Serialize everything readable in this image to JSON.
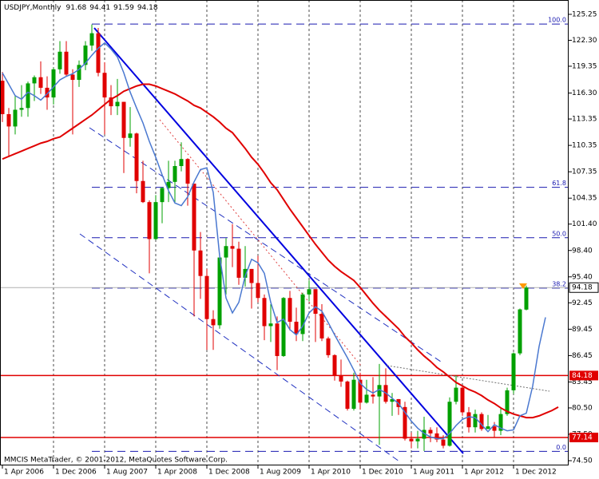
{
  "chart_data": {
    "type": "candlestick",
    "title": "USDJPY,Monthly",
    "footer": "MMCIS MetaTrader, © 2001-2012, MetaQuotes Software Corp.",
    "categories": [
      "1 Apr 2006",
      null,
      null,
      null,
      null,
      null,
      null,
      null,
      "1 Dec 2006",
      null,
      null,
      null,
      null,
      null,
      null,
      null,
      "1 Aug 2007",
      null,
      null,
      null,
      null,
      null,
      null,
      null,
      "1 Apr 2008",
      null,
      null,
      null,
      null,
      null,
      null,
      null,
      "1 Dec 2008",
      null,
      null,
      null,
      null,
      null,
      null,
      null,
      "1 Aug 2009",
      null,
      null,
      null,
      null,
      null,
      null,
      null,
      "1 Apr 2010",
      null,
      null,
      null,
      null,
      null,
      null,
      null,
      "1 Dec 2010",
      null,
      null,
      null,
      null,
      null,
      null,
      null,
      "1 Aug 2011",
      null,
      null,
      null,
      null,
      null,
      null,
      null,
      "1 Apr 2012",
      null,
      null,
      null,
      null,
      null,
      null,
      null,
      "1 Dec 2012",
      null,
      null,
      null,
      null,
      null,
      null,
      null
    ],
    "open": [
      117.7,
      113.9,
      112.5,
      114.4,
      114.6,
      117.4,
      118.1,
      116.9,
      115.8,
      119.0,
      121.0,
      118.4,
      117.8,
      119.5,
      121.7,
      123.1,
      118.6,
      115.8,
      114.8,
      115.3,
      111.2,
      111.7,
      106.3,
      103.9,
      99.7,
      103.9,
      105.5,
      106.2,
      108.0,
      108.8,
      106.0,
      98.4,
      95.5,
      90.6,
      89.9,
      97.6,
      98.9,
      98.6,
      95.3,
      96.3,
      94.7,
      93.0,
      89.8,
      90.1,
      86.4,
      93.0,
      90.3,
      88.9,
      93.4,
      94.0,
      91.2,
      88.4,
      86.5,
      84.2,
      83.5,
      80.4,
      83.7,
      81.1,
      82.0,
      81.8,
      83.1,
      81.2,
      81.5,
      80.6,
      77.0,
      76.7,
      77.0,
      78.0,
      77.6,
      76.9,
      76.2,
      81.2,
      82.8,
      80.0,
      78.3,
      79.8,
      78.1,
      78.4,
      77.9,
      79.8,
      82.5,
      86.7,
      91.68,
      null,
      null,
      null,
      null,
      null
    ],
    "high": [
      118.7,
      114.6,
      116.0,
      117.2,
      117.6,
      118.3,
      119.9,
      118.2,
      119.2,
      122.2,
      122.2,
      119.0,
      120.0,
      122.2,
      124.1,
      123.7,
      119.8,
      117.2,
      117.9,
      115.3,
      114.7,
      111.8,
      108.6,
      104.1,
      104.7,
      105.6,
      108.6,
      108.6,
      110.7,
      108.9,
      106.0,
      100.5,
      96.3,
      91.6,
      98.1,
      99.8,
      101.4,
      99.4,
      98.9,
      96.3,
      97.8,
      93.4,
      92.3,
      90.9,
      93.1,
      93.8,
      91.9,
      93.6,
      95.0,
      94.0,
      92.3,
      88.6,
      86.6,
      86.0,
      83.6,
      84.5,
      84.5,
      83.7,
      84.0,
      85.5,
      85.0,
      82.2,
      81.5,
      81.2,
      77.7,
      77.9,
      79.5,
      78.3,
      78.3,
      77.4,
      81.7,
      84.2,
      82.9,
      80.6,
      80.3,
      80.0,
      79.7,
      78.9,
      80.4,
      82.8,
      86.8,
      91.8,
      94.41,
      null,
      null,
      null,
      null,
      null
    ],
    "low": [
      113.0,
      109.0,
      111.6,
      113.6,
      113.6,
      115.4,
      116.2,
      114.4,
      115.0,
      118.5,
      118.2,
      111.6,
      117.0,
      118.9,
      121.1,
      118.2,
      111.6,
      113.8,
      113.8,
      107.2,
      110.2,
      104.9,
      103.8,
      95.8,
      99.6,
      101.5,
      103.9,
      103.8,
      107.4,
      103.5,
      90.9,
      92.9,
      87.1,
      87.1,
      89.5,
      93.4,
      96.5,
      94.5,
      94.3,
      91.8,
      92.5,
      88.2,
      88.0,
      84.8,
      86.3,
      89.3,
      88.1,
      88.1,
      92.6,
      88.0,
      88.1,
      86.2,
      83.6,
      82.9,
      80.2,
      80.2,
      80.3,
      81.0,
      81.0,
      76.3,
      81.0,
      79.6,
      79.7,
      76.8,
      75.9,
      75.9,
      75.6,
      76.6,
      76.6,
      75.9,
      76.1,
      80.9,
      79.6,
      77.7,
      77.7,
      77.9,
      78.1,
      77.1,
      77.4,
      79.6,
      82.1,
      86.5,
      91.59,
      null,
      null,
      null,
      null,
      null
    ],
    "close": [
      113.9,
      112.5,
      114.4,
      114.6,
      117.4,
      118.1,
      116.9,
      115.8,
      119.0,
      121.0,
      118.4,
      117.8,
      119.5,
      121.7,
      123.1,
      118.6,
      115.8,
      114.8,
      115.3,
      111.2,
      111.7,
      106.3,
      103.9,
      99.7,
      103.9,
      105.5,
      106.2,
      108.0,
      108.8,
      106.0,
      98.4,
      95.5,
      90.6,
      89.9,
      97.6,
      98.9,
      98.6,
      95.3,
      96.3,
      94.7,
      93.0,
      89.8,
      90.1,
      86.4,
      93.0,
      90.3,
      88.9,
      93.4,
      94.0,
      91.2,
      88.4,
      86.5,
      84.2,
      83.5,
      80.4,
      83.7,
      81.1,
      82.0,
      81.8,
      83.1,
      81.2,
      81.5,
      80.6,
      77.0,
      76.7,
      77.0,
      78.0,
      77.6,
      76.9,
      76.2,
      81.2,
      82.8,
      80.0,
      78.3,
      79.8,
      78.1,
      78.4,
      77.9,
      79.8,
      82.5,
      86.7,
      91.7,
      94.18,
      null,
      null,
      null,
      null,
      null
    ],
    "up_color": "#00a000",
    "down_color": "#e00000",
    "series": [
      {
        "color": "#e00000",
        "values": [
          108.8,
          109.1,
          109.4,
          109.7,
          110.0,
          110.3,
          110.6,
          110.8,
          111.1,
          111.3,
          111.8,
          112.3,
          112.8,
          113.3,
          113.8,
          114.4,
          115.0,
          115.6,
          116.0,
          116.5,
          116.8,
          117.1,
          117.3,
          117.3,
          117.1,
          116.8,
          116.5,
          116.2,
          115.8,
          115.4,
          114.9,
          114.6,
          114.1,
          113.6,
          113.0,
          112.3,
          111.8,
          110.9,
          110.0,
          109.0,
          108.2,
          107.2,
          106.1,
          105.3,
          104.2,
          103.1,
          102.1,
          101.1,
          100.1,
          99.1,
          98.2,
          97.3,
          96.6,
          96.0,
          95.5,
          95.0,
          94.2,
          93.3,
          92.4,
          91.6,
          90.9,
          90.2,
          89.5,
          88.6,
          87.9,
          87.1,
          86.4,
          85.8,
          85.1,
          84.6,
          84.0,
          83.4,
          83.0,
          82.6,
          82.3,
          81.9,
          81.4,
          81.0,
          80.5,
          80.1,
          79.8,
          79.6,
          79.4,
          79.4,
          79.6,
          79.9,
          80.2,
          80.6
        ]
      },
      {
        "color": "#4a78d0",
        "values": [
          118.6,
          117.3,
          116.0,
          115.6,
          116.4,
          116.0,
          115.5,
          116.2,
          117.0,
          117.8,
          118.2,
          118.5,
          119.0,
          119.7,
          120.6,
          121.4,
          122.0,
          121.3,
          120.4,
          118.6,
          116.4,
          114.6,
          112.9,
          110.8,
          109.0,
          107.0,
          105.2,
          103.8,
          103.5,
          104.5,
          106.2,
          107.6,
          107.8,
          105.0,
          97.8,
          93.0,
          91.3,
          92.5,
          95.5,
          97.4,
          97.0,
          95.8,
          92.5,
          90.2,
          90.6,
          89.4,
          88.8,
          89.8,
          91.3,
          92.0,
          91.5,
          90.2,
          88.8,
          87.5,
          86.2,
          84.8,
          83.3,
          82.6,
          82.2,
          82.6,
          82.2,
          81.6,
          81.0,
          80.0,
          79.0,
          78.2,
          77.6,
          77.2,
          77.0,
          77.0,
          77.6,
          78.5,
          79.2,
          79.5,
          79.4,
          78.6,
          77.8,
          78.6,
          78.2,
          77.9,
          78.0,
          79.6,
          79.9,
          83.0,
          87.5,
          90.8,
          null,
          null
        ]
      }
    ],
    "fib_levels": [
      {
        "label": "100.0",
        "price": 124.14
      },
      {
        "label": "61.8",
        "price": 105.58
      },
      {
        "label": "50.0",
        "price": 99.85
      },
      {
        "label": "38.2",
        "price": 94.12
      },
      {
        "label": "0.0",
        "price": 75.56
      }
    ],
    "fib_color": "#1a1ab0",
    "levels": [
      84.18,
      77.14
    ],
    "level_color": "#e00000",
    "ylim": [
      73.96,
      126.88
    ],
    "yticks": [
      125.25,
      {
        "value": 122.3,
        "label": "122.30"
      },
      119.35,
      {
        "value": 116.3,
        "label": "116.30"
      },
      113.35,
      110.35,
      107.35,
      104.35,
      {
        "value": 101.4,
        "label": "101.40"
      },
      {
        "value": 98.4,
        "label": "98.40"
      },
      {
        "value": 95.4,
        "label": "95.40"
      },
      92.45,
      89.45,
      86.45,
      83.45,
      {
        "value": 80.5,
        "label": "80.50"
      },
      {
        "value": 77.5,
        "label": "77.50"
      },
      {
        "value": 74.5,
        "label": "74.50"
      }
    ],
    "grid": true
  }
}
